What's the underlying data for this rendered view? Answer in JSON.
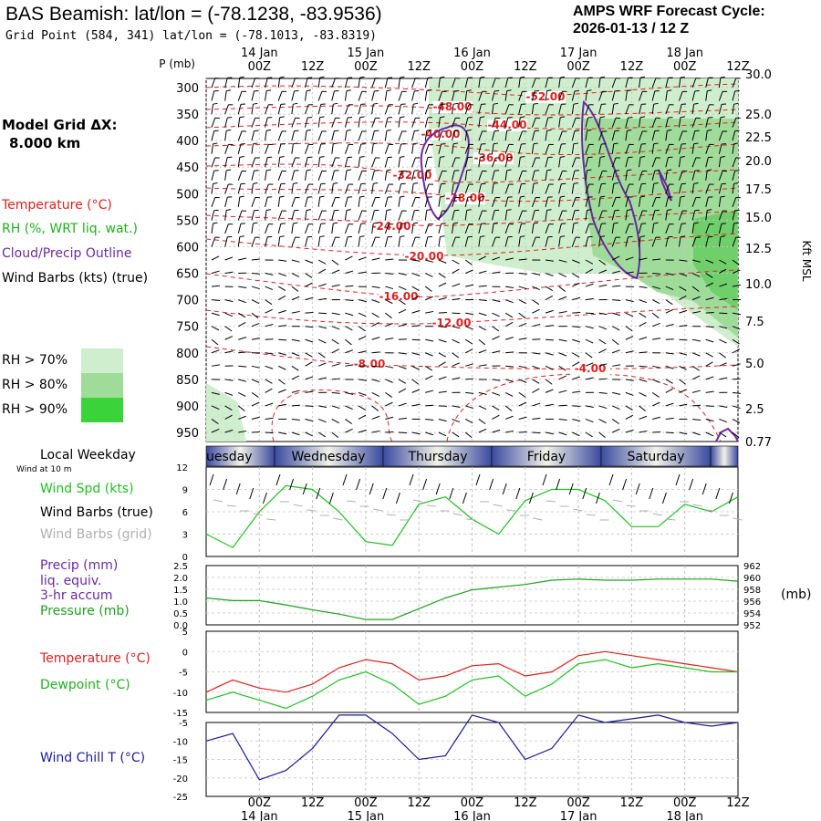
{
  "header": {
    "title": "BAS Beamish:  lat/lon = (-78.1238, -83.9536)",
    "subtitle": "Grid Point (584, 341) lat/lon = (-78.1013, -83.8319)",
    "cycle_label": "AMPS WRF Forecast Cycle:",
    "cycle_value": "2026-01-13 / 12  Z"
  },
  "left_panel": {
    "grid_label": "Model Grid ΔX:",
    "grid_value": "8.000 km",
    "legend": [
      {
        "text": "Temperature (°C)",
        "color": "#e02020"
      },
      {
        "text": "RH (%, WRT liq. wat.)",
        "color": "#20b020"
      },
      {
        "text": "Cloud/Precip Outline",
        "color": "#6a2aa0"
      },
      {
        "text": "Wind Barbs (kts) (true)",
        "color": "#000000"
      }
    ],
    "rh_legend": [
      {
        "text": "RH > 70%",
        "color": "#cfeecd"
      },
      {
        "text": "RH > 80%",
        "color": "#9fdc9a"
      },
      {
        "text": "RH > 90%",
        "color": "#3ad33a"
      }
    ]
  },
  "time_axis": {
    "ticks": [
      "00Z",
      "12Z",
      "00Z",
      "12Z",
      "00Z",
      "12Z",
      "00Z",
      "12Z",
      "00Z",
      "12Z"
    ],
    "dates": [
      "14 Jan",
      "15 Jan",
      "16 Jan",
      "17 Jan",
      "18 Jan"
    ]
  },
  "weekday_bar": {
    "label": "Local Weekday",
    "days": [
      "uesday",
      "Wednesday",
      "Thursday",
      "Friday",
      "Saturday"
    ]
  },
  "chart_data": [
    {
      "type": "heatmap",
      "name": "time-height cross section",
      "y_left_label": "P (mb)",
      "y_left_ticks": [
        "300",
        "350",
        "400",
        "450",
        "500",
        "550",
        "600",
        "650",
        "700",
        "750",
        "800",
        "850",
        "900",
        "950"
      ],
      "y_right_label": "Kft MSL",
      "y_right_ticks": [
        "30.0",
        "25.0",
        "22.5",
        "20.0",
        "17.5",
        "15.0",
        "12.5",
        "10.0",
        "7.5",
        "5.0",
        "2.5",
        "0.77"
      ],
      "temperature_contour_labels": [
        "-52.00",
        "-48.00",
        "-44.00",
        "-40.00",
        "-36.00",
        "-32.00",
        "-28.00",
        "-24.00",
        "-20.00",
        "-16.00",
        "-12.00",
        "-8.00",
        "-4.00"
      ]
    },
    {
      "type": "line",
      "name": "wind speed",
      "caption": "Wind at 10 m",
      "labels": [
        {
          "text": "Wind Spd (kts)",
          "color": "#20c020"
        },
        {
          "text": "Wind Barbs (true)",
          "color": "#000000"
        },
        {
          "text": "Wind Barbs (grid)",
          "color": "#b0b0b0"
        }
      ],
      "y_ticks": [
        "12",
        "9",
        "6",
        "3",
        "0"
      ],
      "ylim": [
        0,
        12
      ],
      "x": [
        0,
        0.5,
        1,
        1.5,
        2,
        2.5,
        3,
        3.5,
        4,
        4.5,
        5,
        5.5,
        6,
        6.5,
        7,
        7.5,
        8,
        8.5,
        9,
        9.5,
        10
      ],
      "values": [
        3,
        1.2,
        6,
        9.5,
        9,
        6,
        2,
        1.5,
        7,
        8,
        5,
        3,
        7.5,
        9,
        9,
        7.5,
        4,
        4,
        7,
        6,
        8
      ],
      "color": "#20c020"
    },
    {
      "type": "line",
      "name": "precip and pressure",
      "labels": [
        {
          "text": "Precip (mm)",
          "color": "#6a2aa0"
        },
        {
          "text": "liq. equiv.",
          "color": "#6a2aa0"
        },
        {
          "text": "3-hr accum",
          "color": "#6a2aa0"
        },
        {
          "text": "Pressure (mb)",
          "color": "#20a020"
        }
      ],
      "y_left_ticks": [
        "2.5",
        "2.0",
        "1.5",
        "1.0",
        "0.5",
        "0.0"
      ],
      "y_right_ticks": [
        "962",
        "960",
        "958",
        "956",
        "954",
        "952"
      ],
      "right_unit": "(mb)",
      "ylim": [
        951.5,
        962.5
      ],
      "x": [
        0,
        0.5,
        1,
        1.5,
        2,
        2.5,
        3,
        3.5,
        4,
        4.5,
        5,
        5.5,
        6,
        6.5,
        7,
        7.5,
        8,
        8.5,
        9,
        9.5,
        10
      ],
      "values": [
        956.5,
        956,
        956,
        955.2,
        954.3,
        953.5,
        952.5,
        952.5,
        954.5,
        956.5,
        958,
        958.5,
        959,
        959.8,
        960,
        959.8,
        959.8,
        960,
        960,
        960,
        959.6
      ],
      "color": "#20a020"
    },
    {
      "type": "line",
      "name": "temperature and dewpoint",
      "labels": [
        {
          "text": "Temperature (°C)",
          "color": "#e02020"
        },
        {
          "text": "Dewpoint (°C)",
          "color": "#20b020"
        }
      ],
      "y_ticks": [
        "5",
        "0",
        "-5",
        "-10",
        "-15"
      ],
      "ylim": [
        -15,
        5
      ],
      "x": [
        0,
        0.5,
        1,
        1.5,
        2,
        2.5,
        3,
        3.5,
        4,
        4.5,
        5,
        5.5,
        6,
        6.5,
        7,
        7.5,
        8,
        8.5,
        9,
        9.5,
        10
      ],
      "series": [
        {
          "values": [
            -10,
            -7,
            -9,
            -10,
            -8,
            -4,
            -2,
            -3,
            -7,
            -6,
            -3.5,
            -3,
            -6,
            -5,
            -1,
            0,
            -1,
            -2,
            -3,
            -4,
            -5
          ],
          "color": "#e02020"
        },
        {
          "values": [
            -12,
            -10,
            -12,
            -14,
            -11,
            -7,
            -5,
            -8,
            -13,
            -11,
            -7,
            -6,
            -11,
            -8,
            -3,
            -2,
            -4,
            -3,
            -4,
            -5,
            -5
          ],
          "color": "#20c020"
        }
      ]
    },
    {
      "type": "line",
      "name": "wind chill",
      "labels": [
        {
          "text": "Wind Chill T (°C)",
          "color": "#1a1a9a"
        }
      ],
      "y_ticks": [
        "-5",
        "-10",
        "-15",
        "-20",
        "-25"
      ],
      "ylim": [
        -25,
        -5
      ],
      "x": [
        0,
        0.5,
        1,
        1.5,
        2,
        2.5,
        3,
        3.5,
        4,
        4.5,
        5,
        5.5,
        6,
        6.5,
        7,
        7.5,
        8,
        8.5,
        9,
        9.5,
        10
      ],
      "values": [
        -10,
        -8,
        -20.5,
        -18,
        -12,
        -3,
        -3,
        -8,
        -15,
        -14,
        -3,
        -5,
        -15,
        -12,
        -3,
        -5,
        -4,
        -3,
        -5,
        -6,
        -5
      ],
      "color": "#1a1a9a"
    }
  ]
}
